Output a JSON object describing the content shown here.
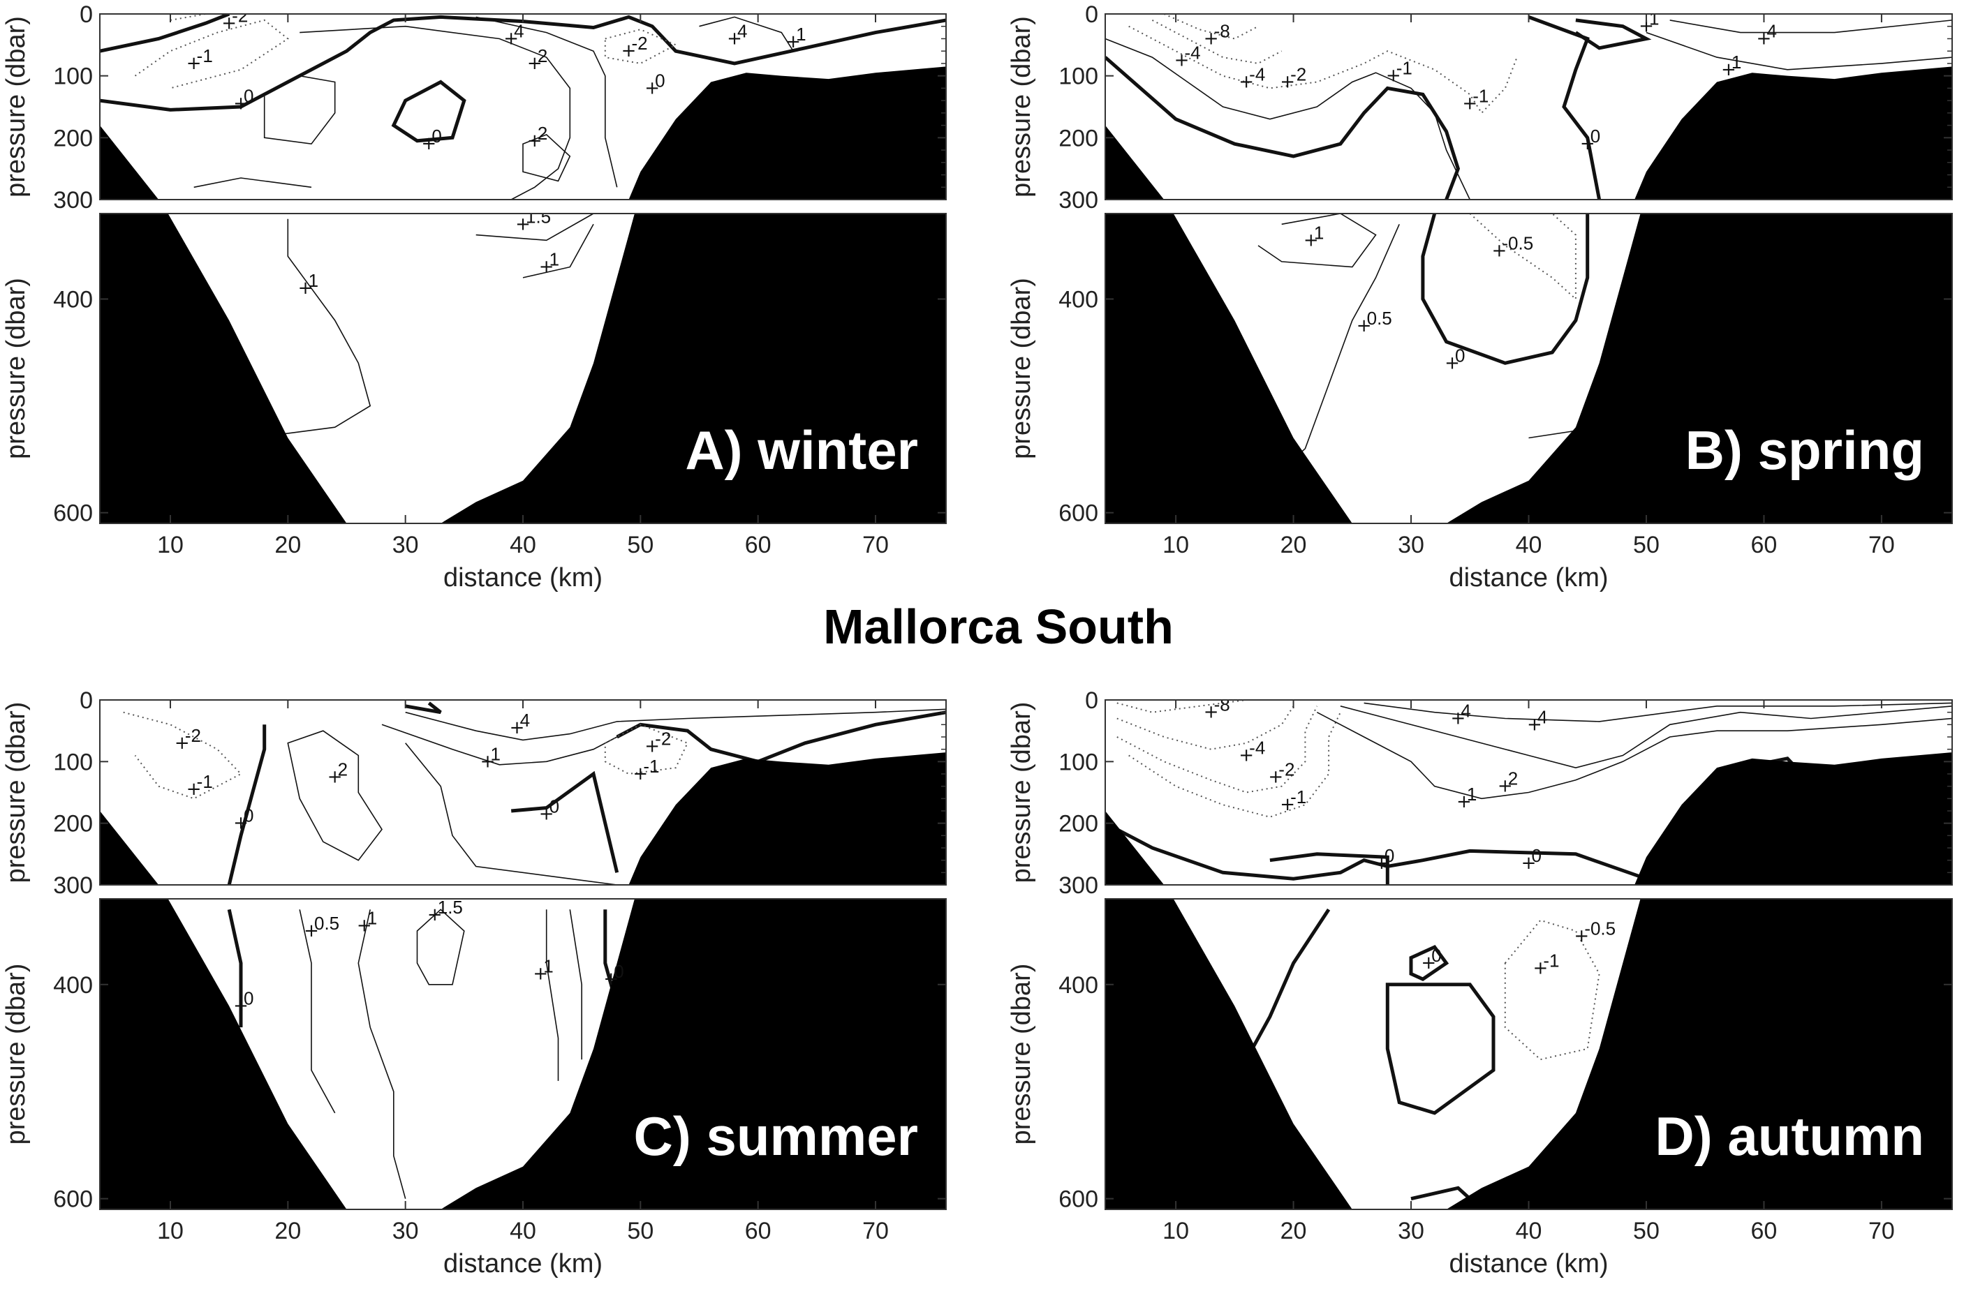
{
  "figure_title": "Mallorca South",
  "chart_data": [
    {
      "type": "contour",
      "panel": "A",
      "season_label": "A) winter",
      "xlabel": "distance (km)",
      "ylabel": "pressure (dbar)",
      "xlim": [
        4,
        76
      ],
      "ylim_upper": [
        0,
        300
      ],
      "ylim_lower": [
        320,
        610
      ],
      "x_ticks": [
        "10",
        "20",
        "30",
        "40",
        "50",
        "60",
        "70"
      ],
      "y_ticks_upper": [
        "0",
        "100",
        "200",
        "300"
      ],
      "y_ticks_lower": [
        "400",
        "600"
      ],
      "contour_labels": [
        {
          "text": "-2",
          "x": 15,
          "y": 15
        },
        {
          "text": "-1",
          "x": 12,
          "y": 80
        },
        {
          "text": "0",
          "x": 16,
          "y": 145
        },
        {
          "text": "4",
          "x": 39,
          "y": 40
        },
        {
          "text": "2",
          "x": 41,
          "y": 80
        },
        {
          "text": "-2",
          "x": 49,
          "y": 60
        },
        {
          "text": "4",
          "x": 58,
          "y": 40
        },
        {
          "text": "1",
          "x": 63,
          "y": 45
        },
        {
          "text": "0",
          "x": 51,
          "y": 120
        },
        {
          "text": "0",
          "x": 32,
          "y": 210
        },
        {
          "text": "2",
          "x": 41,
          "y": 205
        },
        {
          "text": "1.5",
          "x": 40,
          "y": 330
        },
        {
          "text": "1",
          "x": 42,
          "y": 370
        },
        {
          "text": "1",
          "x": 21.5,
          "y": 390
        }
      ]
    },
    {
      "type": "contour",
      "panel": "B",
      "season_label": "B) spring",
      "xlabel": "distance (km)",
      "ylabel": "pressure (dbar)",
      "xlim": [
        4,
        76
      ],
      "ylim_upper": [
        0,
        300
      ],
      "ylim_lower": [
        320,
        610
      ],
      "x_ticks": [
        "10",
        "20",
        "30",
        "40",
        "50",
        "60",
        "70"
      ],
      "y_ticks_upper": [
        "0",
        "100",
        "200",
        "300"
      ],
      "y_ticks_lower": [
        "400",
        "600"
      ],
      "contour_labels": [
        {
          "text": "-8",
          "x": 13,
          "y": 40
        },
        {
          "text": "-4",
          "x": 10.5,
          "y": 75
        },
        {
          "text": "-4",
          "x": 16,
          "y": 110
        },
        {
          "text": "-2",
          "x": 19.5,
          "y": 110
        },
        {
          "text": "-1",
          "x": 28.5,
          "y": 100
        },
        {
          "text": "-1",
          "x": 35,
          "y": 145
        },
        {
          "text": "0",
          "x": 45,
          "y": 210
        },
        {
          "text": "1",
          "x": 50,
          "y": 20
        },
        {
          "text": "4",
          "x": 60,
          "y": 40
        },
        {
          "text": "1",
          "x": 57,
          "y": 90
        },
        {
          "text": "1",
          "x": 21.5,
          "y": 345
        },
        {
          "text": "-0.5",
          "x": 37.5,
          "y": 355
        },
        {
          "text": "0.5",
          "x": 26,
          "y": 425
        },
        {
          "text": "0",
          "x": 33.5,
          "y": 460
        }
      ]
    },
    {
      "type": "contour",
      "panel": "C",
      "season_label": "C) summer",
      "xlabel": "distance (km)",
      "ylabel": "pressure (dbar)",
      "xlim": [
        4,
        76
      ],
      "ylim_upper": [
        0,
        300
      ],
      "ylim_lower": [
        320,
        610
      ],
      "x_ticks": [
        "10",
        "20",
        "30",
        "40",
        "50",
        "60",
        "70"
      ],
      "y_ticks_upper": [
        "0",
        "100",
        "200",
        "300"
      ],
      "y_ticks_lower": [
        "400",
        "600"
      ],
      "contour_labels": [
        {
          "text": "-2",
          "x": 11,
          "y": 70
        },
        {
          "text": "-1",
          "x": 12,
          "y": 145
        },
        {
          "text": "2",
          "x": 24,
          "y": 125
        },
        {
          "text": "0",
          "x": 16,
          "y": 200
        },
        {
          "text": "4",
          "x": 39.5,
          "y": 45
        },
        {
          "text": "1",
          "x": 37,
          "y": 100
        },
        {
          "text": "-2",
          "x": 51,
          "y": 75
        },
        {
          "text": "-1",
          "x": 50,
          "y": 120
        },
        {
          "text": "0",
          "x": 42,
          "y": 185
        },
        {
          "text": "0.5",
          "x": 22,
          "y": 350
        },
        {
          "text": "1",
          "x": 26.5,
          "y": 345
        },
        {
          "text": "1.5",
          "x": 32.5,
          "y": 335
        },
        {
          "text": "0",
          "x": 16,
          "y": 420
        },
        {
          "text": "1",
          "x": 41.5,
          "y": 390
        },
        {
          "text": "0",
          "x": 47.5,
          "y": 395
        }
      ]
    },
    {
      "type": "contour",
      "panel": "D",
      "season_label": "D) autumn",
      "xlabel": "distance (km)",
      "ylabel": "pressure (dbar)",
      "xlim": [
        4,
        76
      ],
      "ylim_upper": [
        0,
        300
      ],
      "ylim_lower": [
        320,
        610
      ],
      "x_ticks": [
        "10",
        "20",
        "30",
        "40",
        "50",
        "60",
        "70"
      ],
      "y_ticks_upper": [
        "0",
        "100",
        "200",
        "300"
      ],
      "y_ticks_lower": [
        "400",
        "600"
      ],
      "contour_labels": [
        {
          "text": "-8",
          "x": 13,
          "y": 20
        },
        {
          "text": "-4",
          "x": 16,
          "y": 90
        },
        {
          "text": "-2",
          "x": 18.5,
          "y": 125
        },
        {
          "text": "-1",
          "x": 19.5,
          "y": 170
        },
        {
          "text": "4",
          "x": 34,
          "y": 30
        },
        {
          "text": "4",
          "x": 40.5,
          "y": 40
        },
        {
          "text": "2",
          "x": 38,
          "y": 140
        },
        {
          "text": "1",
          "x": 34.5,
          "y": 165
        },
        {
          "text": "0",
          "x": 27.5,
          "y": 265
        },
        {
          "text": "0",
          "x": 40,
          "y": 265
        },
        {
          "text": "-0.5",
          "x": 44.5,
          "y": 355
        },
        {
          "text": "0",
          "x": 31.5,
          "y": 380
        },
        {
          "text": "-1",
          "x": 41,
          "y": 385
        }
      ]
    }
  ]
}
